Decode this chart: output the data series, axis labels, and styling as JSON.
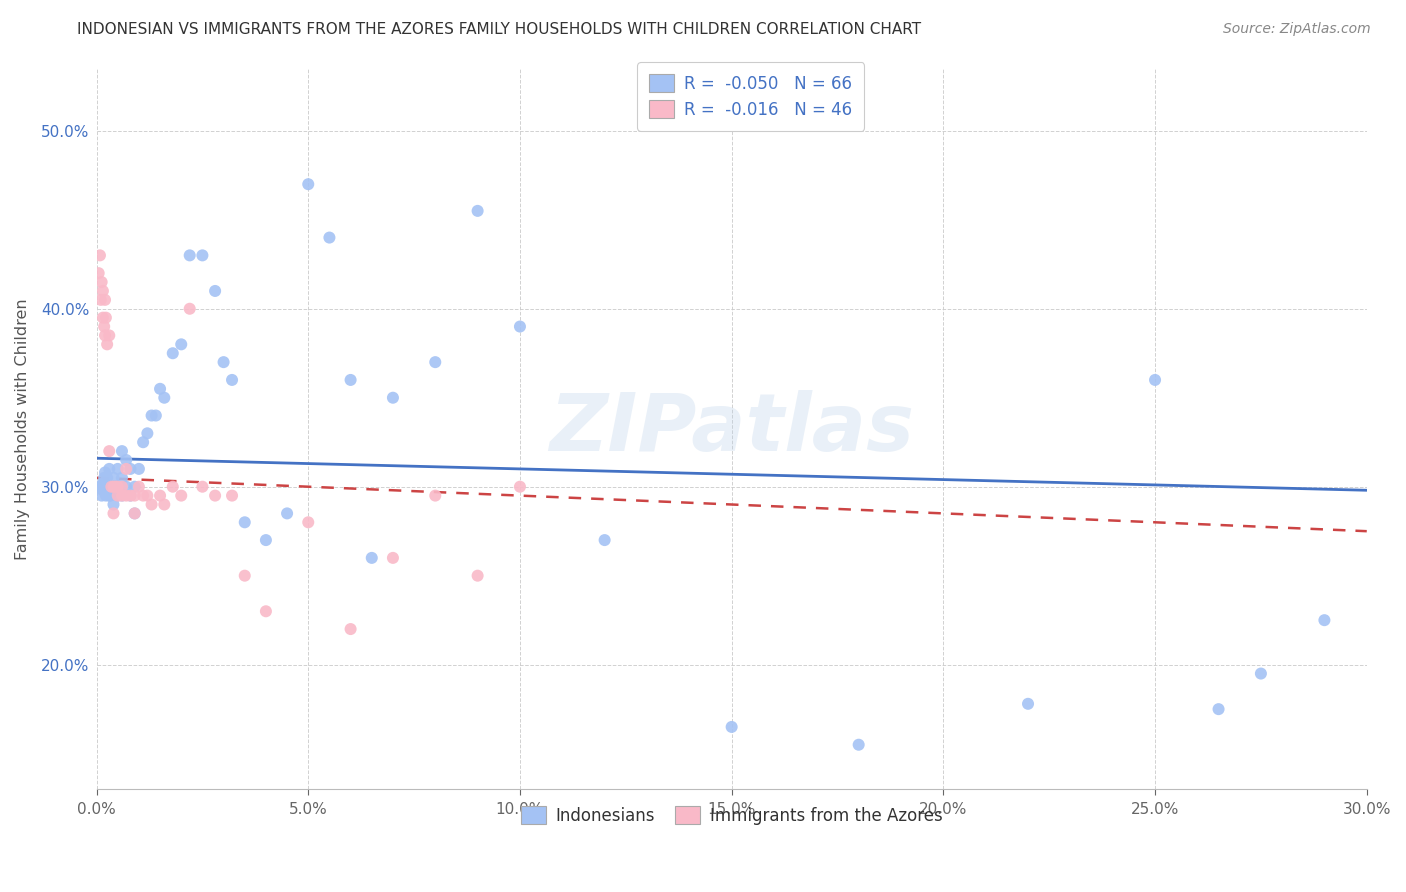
{
  "title": "INDONESIAN VS IMMIGRANTS FROM THE AZORES FAMILY HOUSEHOLDS WITH CHILDREN CORRELATION CHART",
  "source": "Source: ZipAtlas.com",
  "ylabel": "Family Households with Children",
  "legend_R1": "-0.050",
  "legend_N1": "66",
  "legend_R2": "-0.016",
  "legend_N2": "46",
  "color_blue": "#a4c2f4",
  "color_pink": "#f9b9c8",
  "line_blue": "#4472c4",
  "line_pink": "#cc4444",
  "watermark_text": "ZIPatlas",
  "indonesians_x": [
    0.0008,
    0.001,
    0.0012,
    0.0015,
    0.0015,
    0.0018,
    0.002,
    0.002,
    0.002,
    0.0022,
    0.0025,
    0.0025,
    0.003,
    0.003,
    0.003,
    0.0032,
    0.0035,
    0.004,
    0.004,
    0.004,
    0.0045,
    0.005,
    0.005,
    0.005,
    0.006,
    0.006,
    0.006,
    0.007,
    0.007,
    0.008,
    0.008,
    0.009,
    0.009,
    0.01,
    0.011,
    0.012,
    0.013,
    0.014,
    0.015,
    0.016,
    0.018,
    0.02,
    0.022,
    0.025,
    0.028,
    0.03,
    0.032,
    0.035,
    0.04,
    0.045,
    0.05,
    0.055,
    0.06,
    0.065,
    0.07,
    0.08,
    0.09,
    0.1,
    0.12,
    0.15,
    0.18,
    0.22,
    0.25,
    0.265,
    0.275,
    0.29
  ],
  "indonesians_y": [
    0.3,
    0.3,
    0.295,
    0.298,
    0.302,
    0.305,
    0.298,
    0.302,
    0.308,
    0.295,
    0.3,
    0.305,
    0.295,
    0.3,
    0.31,
    0.295,
    0.3,
    0.29,
    0.3,
    0.305,
    0.3,
    0.295,
    0.3,
    0.31,
    0.295,
    0.305,
    0.32,
    0.3,
    0.315,
    0.295,
    0.31,
    0.285,
    0.3,
    0.31,
    0.325,
    0.33,
    0.34,
    0.34,
    0.355,
    0.35,
    0.375,
    0.38,
    0.43,
    0.43,
    0.41,
    0.37,
    0.36,
    0.28,
    0.27,
    0.285,
    0.47,
    0.44,
    0.36,
    0.26,
    0.35,
    0.37,
    0.455,
    0.39,
    0.27,
    0.165,
    0.155,
    0.178,
    0.36,
    0.175,
    0.195,
    0.225
  ],
  "azores_x": [
    0.0005,
    0.0008,
    0.001,
    0.0012,
    0.0015,
    0.0015,
    0.0018,
    0.002,
    0.002,
    0.0022,
    0.0025,
    0.003,
    0.003,
    0.0035,
    0.004,
    0.004,
    0.0045,
    0.005,
    0.005,
    0.006,
    0.006,
    0.007,
    0.007,
    0.008,
    0.009,
    0.009,
    0.01,
    0.011,
    0.012,
    0.013,
    0.015,
    0.016,
    0.018,
    0.02,
    0.022,
    0.025,
    0.028,
    0.032,
    0.035,
    0.04,
    0.05,
    0.06,
    0.07,
    0.08,
    0.09,
    0.1
  ],
  "azores_y": [
    0.42,
    0.43,
    0.405,
    0.415,
    0.395,
    0.41,
    0.39,
    0.405,
    0.385,
    0.395,
    0.38,
    0.385,
    0.32,
    0.3,
    0.285,
    0.3,
    0.3,
    0.3,
    0.295,
    0.3,
    0.295,
    0.295,
    0.31,
    0.295,
    0.295,
    0.285,
    0.3,
    0.295,
    0.295,
    0.29,
    0.295,
    0.29,
    0.3,
    0.295,
    0.4,
    0.3,
    0.295,
    0.295,
    0.25,
    0.23,
    0.28,
    0.22,
    0.26,
    0.295,
    0.25,
    0.3
  ],
  "xlim": [
    0.0,
    0.3
  ],
  "ylim_low": 0.13,
  "ylim_high": 0.535,
  "yticks": [
    0.2,
    0.3,
    0.4,
    0.5
  ],
  "xticks": [
    0.0,
    0.05,
    0.1,
    0.15,
    0.2,
    0.25,
    0.3
  ]
}
